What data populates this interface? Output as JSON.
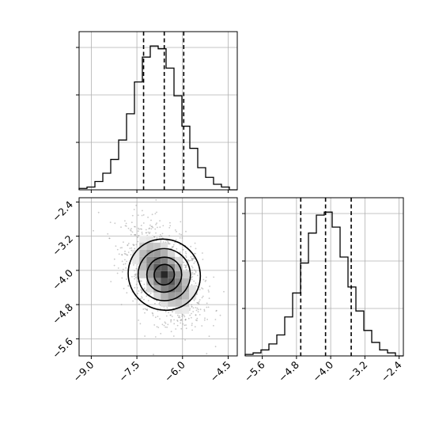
{
  "chart_data": [
    {
      "type": "histogram",
      "panel": "top-left",
      "parameter": "x",
      "title": "",
      "xlabel": "",
      "ylabel": "",
      "xlim": [
        -9.4,
        -4.2
      ],
      "grid": true,
      "y_tick_labels_shown": false,
      "bins": [
        -9.4,
        -9.14,
        -8.88,
        -8.62,
        -8.36,
        -8.1,
        -7.84,
        -7.58,
        -7.32,
        -7.06,
        -6.8,
        -6.54,
        -6.28,
        -6.02,
        -5.76,
        -5.5,
        -5.24,
        -4.98,
        -4.72,
        -4.46,
        -4.2
      ],
      "counts": [
        1,
        2,
        6,
        12,
        22,
        36,
        55,
        78,
        96,
        104,
        102,
        88,
        68,
        46,
        30,
        16,
        9,
        4,
        2,
        0
      ],
      "quantiles": [
        -7.28,
        -6.6,
        -5.96
      ]
    },
    {
      "type": "histogram",
      "panel": "bottom-right",
      "parameter": "y",
      "title": "",
      "xlabel": "",
      "ylabel": "",
      "xlim": [
        -6.0,
        -2.3
      ],
      "grid": true,
      "x_tick_labels": [
        "−5.6",
        "−4.8",
        "−4.0",
        "−3.2",
        "−2.4"
      ],
      "x_ticks": [
        -5.6,
        -4.8,
        -4.0,
        -3.2,
        -2.4
      ],
      "bins": [
        -6.0,
        -5.815,
        -5.63,
        -5.445,
        -5.26,
        -5.075,
        -4.89,
        -4.705,
        -4.52,
        -4.335,
        -4.15,
        -3.965,
        -3.78,
        -3.595,
        -3.41,
        -3.225,
        -3.04,
        -2.855,
        -2.67,
        -2.485,
        -2.3
      ],
      "counts": [
        1,
        2,
        4,
        8,
        14,
        26,
        42,
        62,
        82,
        94,
        96,
        86,
        66,
        46,
        30,
        17,
        9,
        4,
        2,
        0
      ],
      "quantiles": [
        -4.7,
        -4.12,
        -3.52
      ]
    },
    {
      "type": "scatter",
      "panel": "bottom-left",
      "subtype": "2d-histogram-with-contours",
      "title": "",
      "xlabel": "",
      "ylabel": "",
      "xlim": [
        -9.4,
        -4.2
      ],
      "ylim": [
        -6.0,
        -2.3
      ],
      "grid": true,
      "x_tick_labels": [
        "−9.0",
        "−7.5",
        "−6.0",
        "−4.5"
      ],
      "x_ticks": [
        -9.0,
        -7.5,
        -6.0,
        -4.5
      ],
      "y_tick_labels": [
        "−2.4",
        "−3.2",
        "−4.0",
        "−4.8",
        "−5.6"
      ],
      "y_ticks": [
        -2.4,
        -3.2,
        -4.0,
        -4.8,
        -5.6
      ],
      "center": {
        "x": -6.6,
        "y": -4.1
      },
      "spread": {
        "sx": 0.62,
        "sy": 0.56,
        "rho": -0.45
      },
      "contour_levels": [
        {
          "rx": 0.62,
          "ry": 0.26,
          "angle": -55
        },
        {
          "rx": 1.05,
          "ry": 0.45,
          "angle": -55
        },
        {
          "rx": 1.55,
          "ry": 0.68,
          "angle": -55
        },
        {
          "rx": 2.1,
          "ry": 0.95,
          "angle": -55
        }
      ]
    }
  ]
}
